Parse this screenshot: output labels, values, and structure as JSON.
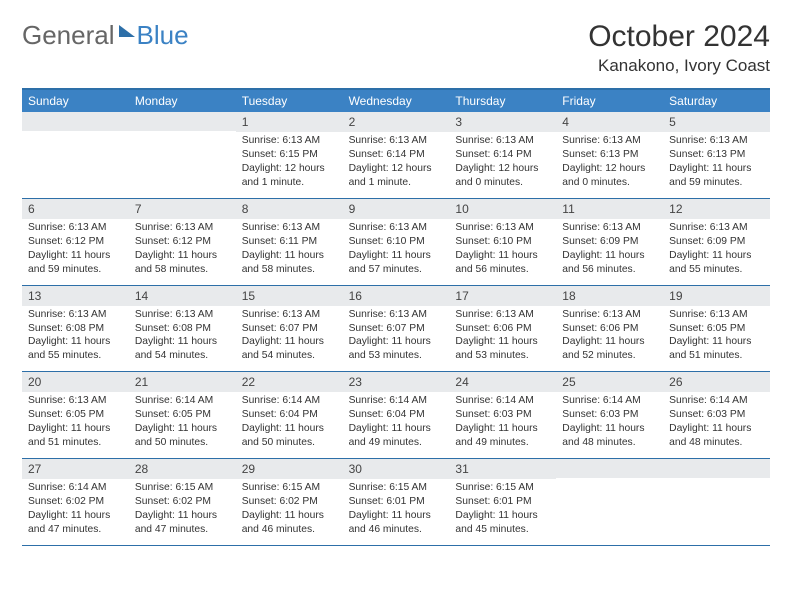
{
  "logo": {
    "part1": "General",
    "part2": "Blue"
  },
  "title": "October 2024",
  "location": "Kanakono, Ivory Coast",
  "colors": {
    "header_bg": "#3b82c4",
    "border": "#2d6fa8",
    "daynum_bg": "#e8eaec",
    "text": "#333333"
  },
  "dow": [
    "Sunday",
    "Monday",
    "Tuesday",
    "Wednesday",
    "Thursday",
    "Friday",
    "Saturday"
  ],
  "first_weekday_index": 2,
  "days": [
    {
      "n": 1,
      "sr": "6:13 AM",
      "ss": "6:15 PM",
      "dl": "12 hours and 1 minute."
    },
    {
      "n": 2,
      "sr": "6:13 AM",
      "ss": "6:14 PM",
      "dl": "12 hours and 1 minute."
    },
    {
      "n": 3,
      "sr": "6:13 AM",
      "ss": "6:14 PM",
      "dl": "12 hours and 0 minutes."
    },
    {
      "n": 4,
      "sr": "6:13 AM",
      "ss": "6:13 PM",
      "dl": "12 hours and 0 minutes."
    },
    {
      "n": 5,
      "sr": "6:13 AM",
      "ss": "6:13 PM",
      "dl": "11 hours and 59 minutes."
    },
    {
      "n": 6,
      "sr": "6:13 AM",
      "ss": "6:12 PM",
      "dl": "11 hours and 59 minutes."
    },
    {
      "n": 7,
      "sr": "6:13 AM",
      "ss": "6:12 PM",
      "dl": "11 hours and 58 minutes."
    },
    {
      "n": 8,
      "sr": "6:13 AM",
      "ss": "6:11 PM",
      "dl": "11 hours and 58 minutes."
    },
    {
      "n": 9,
      "sr": "6:13 AM",
      "ss": "6:10 PM",
      "dl": "11 hours and 57 minutes."
    },
    {
      "n": 10,
      "sr": "6:13 AM",
      "ss": "6:10 PM",
      "dl": "11 hours and 56 minutes."
    },
    {
      "n": 11,
      "sr": "6:13 AM",
      "ss": "6:09 PM",
      "dl": "11 hours and 56 minutes."
    },
    {
      "n": 12,
      "sr": "6:13 AM",
      "ss": "6:09 PM",
      "dl": "11 hours and 55 minutes."
    },
    {
      "n": 13,
      "sr": "6:13 AM",
      "ss": "6:08 PM",
      "dl": "11 hours and 55 minutes."
    },
    {
      "n": 14,
      "sr": "6:13 AM",
      "ss": "6:08 PM",
      "dl": "11 hours and 54 minutes."
    },
    {
      "n": 15,
      "sr": "6:13 AM",
      "ss": "6:07 PM",
      "dl": "11 hours and 54 minutes."
    },
    {
      "n": 16,
      "sr": "6:13 AM",
      "ss": "6:07 PM",
      "dl": "11 hours and 53 minutes."
    },
    {
      "n": 17,
      "sr": "6:13 AM",
      "ss": "6:06 PM",
      "dl": "11 hours and 53 minutes."
    },
    {
      "n": 18,
      "sr": "6:13 AM",
      "ss": "6:06 PM",
      "dl": "11 hours and 52 minutes."
    },
    {
      "n": 19,
      "sr": "6:13 AM",
      "ss": "6:05 PM",
      "dl": "11 hours and 51 minutes."
    },
    {
      "n": 20,
      "sr": "6:13 AM",
      "ss": "6:05 PM",
      "dl": "11 hours and 51 minutes."
    },
    {
      "n": 21,
      "sr": "6:14 AM",
      "ss": "6:05 PM",
      "dl": "11 hours and 50 minutes."
    },
    {
      "n": 22,
      "sr": "6:14 AM",
      "ss": "6:04 PM",
      "dl": "11 hours and 50 minutes."
    },
    {
      "n": 23,
      "sr": "6:14 AM",
      "ss": "6:04 PM",
      "dl": "11 hours and 49 minutes."
    },
    {
      "n": 24,
      "sr": "6:14 AM",
      "ss": "6:03 PM",
      "dl": "11 hours and 49 minutes."
    },
    {
      "n": 25,
      "sr": "6:14 AM",
      "ss": "6:03 PM",
      "dl": "11 hours and 48 minutes."
    },
    {
      "n": 26,
      "sr": "6:14 AM",
      "ss": "6:03 PM",
      "dl": "11 hours and 48 minutes."
    },
    {
      "n": 27,
      "sr": "6:14 AM",
      "ss": "6:02 PM",
      "dl": "11 hours and 47 minutes."
    },
    {
      "n": 28,
      "sr": "6:15 AM",
      "ss": "6:02 PM",
      "dl": "11 hours and 47 minutes."
    },
    {
      "n": 29,
      "sr": "6:15 AM",
      "ss": "6:02 PM",
      "dl": "11 hours and 46 minutes."
    },
    {
      "n": 30,
      "sr": "6:15 AM",
      "ss": "6:01 PM",
      "dl": "11 hours and 46 minutes."
    },
    {
      "n": 31,
      "sr": "6:15 AM",
      "ss": "6:01 PM",
      "dl": "11 hours and 45 minutes."
    }
  ],
  "labels": {
    "sunrise": "Sunrise:",
    "sunset": "Sunset:",
    "daylight": "Daylight:"
  }
}
